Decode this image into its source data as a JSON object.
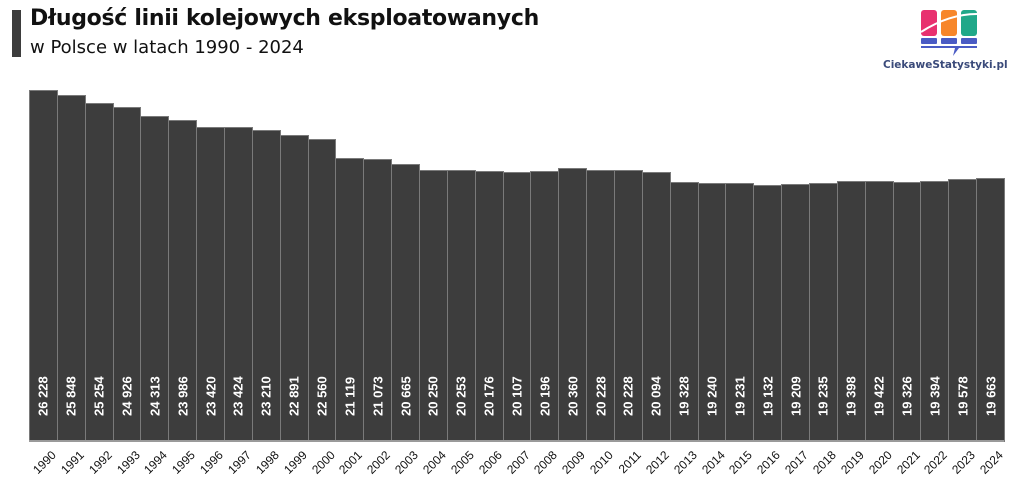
{
  "header": {
    "title": "Długość linii kolejowych eksploatowanych",
    "subtitle": "w Polsce w latach 1990 - 2024"
  },
  "brand": {
    "name": "CiekaweStatystyki.pl",
    "logo_icon": "bar-chart-speech-bubble-icon",
    "colors": [
      "#e8306f",
      "#f7862a",
      "#20a889",
      "#4a5bc4"
    ]
  },
  "colors": {
    "bar": "#3d3d3d",
    "bar_border": "#7a7a7a",
    "label": "#ffffff"
  },
  "chart_data": {
    "type": "bar",
    "title": "Długość linii kolejowych eksploatowanych",
    "subtitle": "w Polsce w latach 1990 - 2024",
    "xlabel": "",
    "ylabel": "",
    "grid": false,
    "legend": "none",
    "ylim": [
      0,
      27000
    ],
    "categories": [
      "1990",
      "1991",
      "1992",
      "1993",
      "1994",
      "1995",
      "1996",
      "1997",
      "1998",
      "1999",
      "2000",
      "2001",
      "2002",
      "2003",
      "2004",
      "2005",
      "2006",
      "2007",
      "2008",
      "2009",
      "2010",
      "2011",
      "2012",
      "2013",
      "2014",
      "2015",
      "2016",
      "2017",
      "2018",
      "2019",
      "2020",
      "2021",
      "2022",
      "2023",
      "2024"
    ],
    "values": [
      26228,
      25848,
      25254,
      24926,
      24313,
      23986,
      23420,
      23424,
      23210,
      22891,
      22560,
      21119,
      21073,
      20665,
      20250,
      20253,
      20176,
      20107,
      20196,
      20360,
      20228,
      20228,
      20094,
      19328,
      19240,
      19231,
      19132,
      19209,
      19235,
      19398,
      19422,
      19326,
      19394,
      19578,
      19663
    ],
    "value_labels": [
      "26 228",
      "25 848",
      "25 254",
      "24 926",
      "24 313",
      "23 986",
      "23 420",
      "23 424",
      "23 210",
      "22 891",
      "22 560",
      "21 119",
      "21 073",
      "20 665",
      "20 250",
      "20 253",
      "20 176",
      "20 107",
      "20 196",
      "20 360",
      "20 228",
      "20 228",
      "20 094",
      "19 328",
      "19 240",
      "19 231",
      "19 132",
      "19 209",
      "19 235",
      "19 398",
      "19 422",
      "19 326",
      "19 394",
      "19 578",
      "19 663"
    ]
  }
}
